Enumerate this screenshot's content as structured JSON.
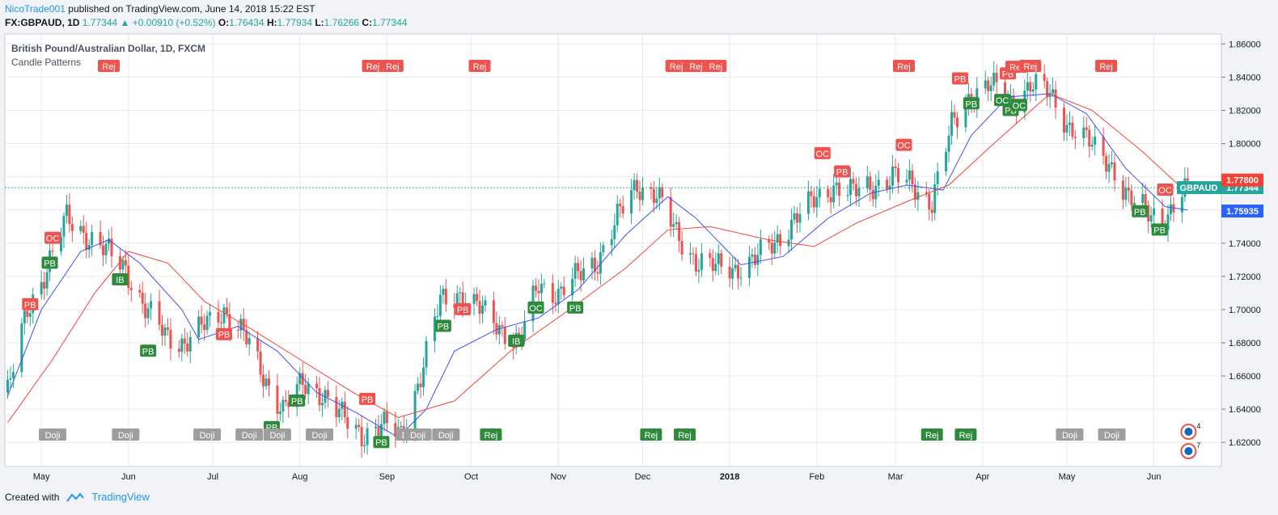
{
  "header": {
    "author": "NicoTrade001",
    "published": "published on TradingView.com, June 14, 2018 15:22 EST"
  },
  "ohlc": {
    "symbol": "FX:GBPAUD, 1D",
    "last": "1.77344",
    "change": "+0.00910 (+0.52%)",
    "o_label": "O:",
    "o": "1.76434",
    "h_label": "H:",
    "h": "1.77934",
    "l_label": "L:",
    "l": "1.76266",
    "c_label": "C:",
    "c": "1.77344"
  },
  "footer": {
    "created": "Created with",
    "brand": "TradingView"
  },
  "colors": {
    "up": "#26a69a",
    "down": "#ef5350",
    "ma_fast": "#3f51f5",
    "ma_slow": "#f44336",
    "grid": "#e6e9ee"
  },
  "chart_data": {
    "type": "candlestick",
    "title": "British Pound/Australian Dollar, 1D, FXCM",
    "indicator": "Candle Patterns",
    "ylim": [
      1.6055,
      1.866
    ],
    "y_ticks": [
      "1.62000",
      "1.64000",
      "1.66000",
      "1.68000",
      "1.70000",
      "1.72000",
      "1.74000",
      "1.76000",
      "1.78000",
      "1.80000",
      "1.82000",
      "1.84000",
      "1.86000"
    ],
    "x_ticks": [
      "May",
      "Jun",
      "Jul",
      "Aug",
      "Sep",
      "Oct",
      "Nov",
      "Dec",
      "2018",
      "Feb",
      "Mar",
      "Apr",
      "May",
      "Jun"
    ],
    "price_labels": [
      {
        "text": "GBPAUD",
        "value": "1.77344",
        "color": "#26a69a"
      },
      {
        "text": "",
        "value": "1.75935",
        "color": "#2962ff"
      },
      {
        "text": "",
        "value": "1.77800",
        "color": "#f44336"
      }
    ],
    "close_path": [
      [
        "2017-04-19",
        1.65
      ],
      [
        "2017-04-26",
        1.7
      ],
      [
        "2017-05-03",
        1.725
      ],
      [
        "2017-05-10",
        1.755
      ],
      [
        "2017-05-17",
        1.745
      ],
      [
        "2017-05-24",
        1.735
      ],
      [
        "2017-05-31",
        1.725
      ],
      [
        "2017-06-07",
        1.7
      ],
      [
        "2017-06-14",
        1.685
      ],
      [
        "2017-06-21",
        1.68
      ],
      [
        "2017-06-28",
        1.69
      ],
      [
        "2017-07-05",
        1.7
      ],
      [
        "2017-07-12",
        1.685
      ],
      [
        "2017-07-19",
        1.66
      ],
      [
        "2017-07-26",
        1.64
      ],
      [
        "2017-08-02",
        1.655
      ],
      [
        "2017-08-09",
        1.65
      ],
      [
        "2017-08-16",
        1.635
      ],
      [
        "2017-08-23",
        1.625
      ],
      [
        "2017-08-30",
        1.63
      ],
      [
        "2017-09-06",
        1.625
      ],
      [
        "2017-09-13",
        1.66
      ],
      [
        "2017-09-20",
        1.705
      ],
      [
        "2017-09-27",
        1.71
      ],
      [
        "2017-10-04",
        1.7
      ],
      [
        "2017-10-11",
        1.69
      ],
      [
        "2017-10-18",
        1.68
      ],
      [
        "2017-10-25",
        1.715
      ],
      [
        "2017-11-01",
        1.71
      ],
      [
        "2017-11-08",
        1.72
      ],
      [
        "2017-11-15",
        1.73
      ],
      [
        "2017-11-22",
        1.755
      ],
      [
        "2017-11-29",
        1.775
      ],
      [
        "2017-12-06",
        1.77
      ],
      [
        "2017-12-13",
        1.745
      ],
      [
        "2017-12-20",
        1.73
      ],
      [
        "2017-12-27",
        1.725
      ],
      [
        "2018-01-03",
        1.725
      ],
      [
        "2018-01-10",
        1.73
      ],
      [
        "2018-01-17",
        1.74
      ],
      [
        "2018-01-24",
        1.755
      ],
      [
        "2018-01-31",
        1.765
      ],
      [
        "2018-02-07",
        1.775
      ],
      [
        "2018-02-14",
        1.77
      ],
      [
        "2018-02-21",
        1.775
      ],
      [
        "2018-02-28",
        1.78
      ],
      [
        "2018-03-07",
        1.775
      ],
      [
        "2018-03-14",
        1.765
      ],
      [
        "2018-03-21",
        1.81
      ],
      [
        "2018-03-28",
        1.83
      ],
      [
        "2018-04-04",
        1.835
      ],
      [
        "2018-04-11",
        1.825
      ],
      [
        "2018-04-18",
        1.835
      ],
      [
        "2018-04-25",
        1.83
      ],
      [
        "2018-05-02",
        1.81
      ],
      [
        "2018-05-09",
        1.8
      ],
      [
        "2018-05-16",
        1.79
      ],
      [
        "2018-05-23",
        1.765
      ],
      [
        "2018-05-30",
        1.76
      ],
      [
        "2018-06-06",
        1.755
      ],
      [
        "2018-06-13",
        1.773
      ]
    ],
    "ma_fast": [
      [
        "2017-04-19",
        1.648
      ],
      [
        "2017-05-01",
        1.7
      ],
      [
        "2017-05-15",
        1.735
      ],
      [
        "2017-05-25",
        1.742
      ],
      [
        "2017-06-05",
        1.728
      ],
      [
        "2017-06-20",
        1.7
      ],
      [
        "2017-06-26",
        1.682
      ],
      [
        "2017-07-10",
        1.69
      ],
      [
        "2017-07-24",
        1.675
      ],
      [
        "2017-08-07",
        1.65
      ],
      [
        "2017-08-21",
        1.638
      ],
      [
        "2017-09-05",
        1.623
      ],
      [
        "2017-09-15",
        1.64
      ],
      [
        "2017-09-25",
        1.675
      ],
      [
        "2017-10-10",
        1.688
      ],
      [
        "2017-10-25",
        1.695
      ],
      [
        "2017-11-08",
        1.712
      ],
      [
        "2017-11-25",
        1.745
      ],
      [
        "2017-12-10",
        1.768
      ],
      [
        "2017-12-20",
        1.755
      ],
      [
        "2018-01-05",
        1.727
      ],
      [
        "2018-01-20",
        1.732
      ],
      [
        "2018-02-05",
        1.755
      ],
      [
        "2018-02-20",
        1.77
      ],
      [
        "2018-03-05",
        1.775
      ],
      [
        "2018-03-18",
        1.772
      ],
      [
        "2018-03-28",
        1.805
      ],
      [
        "2018-04-10",
        1.828
      ],
      [
        "2018-04-25",
        1.83
      ],
      [
        "2018-05-08",
        1.818
      ],
      [
        "2018-05-22",
        1.785
      ],
      [
        "2018-06-05",
        1.762
      ],
      [
        "2018-06-13",
        1.76
      ]
    ],
    "ma_slow": [
      [
        "2017-04-19",
        1.632
      ],
      [
        "2017-05-05",
        1.67
      ],
      [
        "2017-05-20",
        1.71
      ],
      [
        "2017-06-01",
        1.735
      ],
      [
        "2017-06-15",
        1.728
      ],
      [
        "2017-06-28",
        1.705
      ],
      [
        "2017-07-15",
        1.688
      ],
      [
        "2017-08-01",
        1.67
      ],
      [
        "2017-08-20",
        1.65
      ],
      [
        "2017-09-05",
        1.635
      ],
      [
        "2017-09-25",
        1.645
      ],
      [
        "2017-10-15",
        1.675
      ],
      [
        "2017-11-05",
        1.7
      ],
      [
        "2017-11-25",
        1.725
      ],
      [
        "2017-12-10",
        1.748
      ],
      [
        "2017-12-25",
        1.75
      ],
      [
        "2018-01-15",
        1.742
      ],
      [
        "2018-01-31",
        1.738
      ],
      [
        "2018-02-15",
        1.752
      ],
      [
        "2018-03-05",
        1.765
      ],
      [
        "2018-03-20",
        1.775
      ],
      [
        "2018-04-05",
        1.8
      ],
      [
        "2018-04-25",
        1.83
      ],
      [
        "2018-05-10",
        1.82
      ],
      [
        "2018-05-28",
        1.795
      ],
      [
        "2018-06-13",
        1.77
      ]
    ],
    "patterns_top": [
      {
        "label": "PB",
        "date": "2017-04-27",
        "price": 1.703,
        "kind": "bear"
      },
      {
        "label": "PB",
        "date": "2017-05-04",
        "price": 1.728,
        "kind": "bull"
      },
      {
        "label": "OC",
        "date": "2017-05-05",
        "price": 1.743,
        "kind": "bear"
      },
      {
        "label": "IB",
        "date": "2017-05-29",
        "price": 1.718,
        "kind": "bull"
      },
      {
        "label": "PB",
        "date": "2017-06-08",
        "price": 1.675,
        "kind": "bull"
      },
      {
        "label": "PB",
        "date": "2017-07-05",
        "price": 1.685,
        "kind": "bear"
      },
      {
        "label": "PB",
        "date": "2017-07-22",
        "price": 1.629,
        "kind": "bull"
      },
      {
        "label": "PB",
        "date": "2017-07-31",
        "price": 1.645,
        "kind": "bull"
      },
      {
        "label": "PB",
        "date": "2017-08-25",
        "price": 1.646,
        "kind": "bear"
      },
      {
        "label": "PB",
        "date": "2017-08-30",
        "price": 1.62,
        "kind": "bull"
      },
      {
        "label": "PB",
        "date": "2017-09-21",
        "price": 1.69,
        "kind": "bull"
      },
      {
        "label": "PB",
        "date": "2017-09-28",
        "price": 1.7,
        "kind": "bear"
      },
      {
        "label": "IB",
        "date": "2017-10-17",
        "price": 1.681,
        "kind": "bull"
      },
      {
        "label": "OC",
        "date": "2017-10-24",
        "price": 1.701,
        "kind": "bull"
      },
      {
        "label": "PB",
        "date": "2017-11-07",
        "price": 1.701,
        "kind": "bull"
      },
      {
        "label": "OC",
        "date": "2018-02-03",
        "price": 1.794,
        "kind": "bear"
      },
      {
        "label": "PB",
        "date": "2018-02-10",
        "price": 1.783,
        "kind": "bear"
      },
      {
        "label": "OC",
        "date": "2018-03-04",
        "price": 1.799,
        "kind": "bear"
      },
      {
        "label": "PB",
        "date": "2018-03-24",
        "price": 1.839,
        "kind": "bear"
      },
      {
        "label": "PB",
        "date": "2018-03-28",
        "price": 1.824,
        "kind": "bull"
      },
      {
        "label": "OC",
        "date": "2018-04-08",
        "price": 1.826,
        "kind": "bull"
      },
      {
        "label": "PB",
        "date": "2018-04-11",
        "price": 1.82,
        "kind": "bull"
      },
      {
        "label": "OC",
        "date": "2018-04-14",
        "price": 1.823,
        "kind": "bull"
      },
      {
        "label": "PB",
        "date": "2018-04-10",
        "price": 1.842,
        "kind": "bear"
      },
      {
        "label": "Rej",
        "date": "2018-04-13",
        "price": 1.846,
        "kind": "bear"
      },
      {
        "label": "PB",
        "date": "2018-05-27",
        "price": 1.759,
        "kind": "bull"
      },
      {
        "label": "PB",
        "date": "2018-06-03",
        "price": 1.748,
        "kind": "bull"
      },
      {
        "label": "OC",
        "date": "2018-06-05",
        "price": 1.772,
        "kind": "bear"
      }
    ],
    "rej_top_dates": [
      "2017-05-25",
      "2017-08-27",
      "2017-09-03",
      "2017-10-04",
      "2017-12-13",
      "2017-12-20",
      "2017-12-27",
      "2018-03-04",
      "2018-04-18",
      "2018-05-15"
    ],
    "bottom_markers": [
      {
        "label": "Doji",
        "date": "2017-05-05",
        "kind": "doji"
      },
      {
        "label": "Doji",
        "date": "2017-05-31",
        "kind": "doji"
      },
      {
        "label": "Doji",
        "date": "2017-06-29",
        "kind": "doji"
      },
      {
        "label": "Doji",
        "date": "2017-07-14",
        "kind": "doji"
      },
      {
        "label": "Doji",
        "date": "2017-07-24",
        "kind": "doji"
      },
      {
        "label": "Doji",
        "date": "2017-08-08",
        "kind": "doji"
      },
      {
        "label": "Doji",
        "date": "2017-09-09",
        "kind": "doji"
      },
      {
        "label": "Doji",
        "date": "2017-09-12",
        "kind": "doji"
      },
      {
        "label": "Doji",
        "date": "2017-09-22",
        "kind": "doji"
      },
      {
        "label": "Rej",
        "date": "2017-10-08",
        "kind": "rej"
      },
      {
        "label": "Rej",
        "date": "2017-12-04",
        "kind": "rej"
      },
      {
        "label": "Rej",
        "date": "2017-12-16",
        "kind": "rej"
      },
      {
        "label": "Rej",
        "date": "2018-03-14",
        "kind": "rej"
      },
      {
        "label": "Rej",
        "date": "2018-03-26",
        "kind": "rej"
      },
      {
        "label": "Doji",
        "date": "2018-05-02",
        "kind": "doji"
      },
      {
        "label": "Doji",
        "date": "2018-05-17",
        "kind": "doji"
      }
    ],
    "events": [
      {
        "label": "4",
        "date": "2018-06-11"
      },
      {
        "label": "7",
        "date": "2018-06-11"
      }
    ]
  }
}
